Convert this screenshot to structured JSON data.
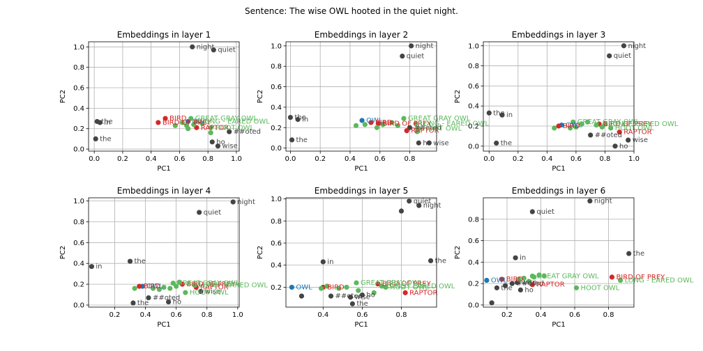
{
  "figure": {
    "title": "Sentence: The wise OWL hooted in the quiet night."
  },
  "colors": {
    "context": "#444444",
    "owl": "#1f77b4",
    "bird": "#d62728",
    "family": "#5cb85c"
  },
  "chart_data": [
    {
      "type": "scatter",
      "title": "Embeddings in layer 1",
      "xlabel": "PC1",
      "ylabel": "PC2",
      "xlim": [
        -0.04,
        1.02
      ],
      "ylim": [
        -0.02,
        1.05
      ],
      "xticks": [
        0.0,
        0.2,
        0.4,
        0.6,
        0.8,
        1.0
      ],
      "yticks": [
        0.0,
        0.2,
        0.4,
        0.6,
        0.8,
        1.0
      ],
      "grid": true,
      "points": [
        {
          "x": 0.69,
          "y": 1.0,
          "label": "night",
          "group": "context"
        },
        {
          "x": 0.84,
          "y": 0.97,
          "label": "quiet",
          "group": "context"
        },
        {
          "x": 0.02,
          "y": 0.27,
          "label": "the",
          "group": "context"
        },
        {
          "x": 0.04,
          "y": 0.26,
          "label": "in",
          "group": "context"
        },
        {
          "x": 0.01,
          "y": 0.1,
          "label": "the",
          "group": "context"
        },
        {
          "x": 0.83,
          "y": 0.07,
          "label": "ho",
          "group": "context"
        },
        {
          "x": 0.87,
          "y": 0.03,
          "label": "wise",
          "group": "context"
        },
        {
          "x": 0.95,
          "y": 0.17,
          "label": "##oted",
          "group": "context"
        },
        {
          "x": 0.66,
          "y": 0.27,
          "label": "OWL",
          "group": "owl"
        },
        {
          "x": 0.5,
          "y": 0.3,
          "label": "BIRD",
          "group": "bird"
        },
        {
          "x": 0.45,
          "y": 0.26,
          "label": "BIRD OF PREY",
          "group": "bird"
        },
        {
          "x": 0.72,
          "y": 0.21,
          "label": "RAPTOR",
          "group": "bird"
        },
        {
          "x": 0.68,
          "y": 0.3,
          "label": "GREAT GRAY OWL",
          "group": "family"
        },
        {
          "x": 0.72,
          "y": 0.27,
          "label": "LONG - EARED OWL",
          "group": "family"
        },
        {
          "x": 0.82,
          "y": 0.21,
          "label": "HOOT OWL",
          "group": "family"
        },
        {
          "x": 0.57,
          "y": 0.23,
          "label": "",
          "group": "family"
        },
        {
          "x": 0.62,
          "y": 0.26,
          "label": "",
          "group": "family"
        },
        {
          "x": 0.65,
          "y": 0.23,
          "label": "",
          "group": "family"
        },
        {
          "x": 0.66,
          "y": 0.2,
          "label": "",
          "group": "family"
        },
        {
          "x": 0.7,
          "y": 0.24,
          "label": "",
          "group": "family"
        },
        {
          "x": 0.76,
          "y": 0.25,
          "label": "",
          "group": "family"
        },
        {
          "x": 0.82,
          "y": 0.16,
          "label": "",
          "group": "family"
        }
      ]
    },
    {
      "type": "scatter",
      "title": "Embeddings in layer 2",
      "xlabel": "PC1",
      "ylabel": "PC2",
      "xlim": [
        -0.03,
        0.98
      ],
      "ylim": [
        -0.03,
        1.04
      ],
      "xticks": [
        0.0,
        0.2,
        0.4,
        0.6,
        0.8
      ],
      "yticks": [
        0.0,
        0.2,
        0.4,
        0.6,
        0.8,
        1.0
      ],
      "grid": true,
      "points": [
        {
          "x": 0.81,
          "y": 1.0,
          "label": "night",
          "group": "context"
        },
        {
          "x": 0.75,
          "y": 0.9,
          "label": "quiet",
          "group": "context"
        },
        {
          "x": 0.0,
          "y": 0.3,
          "label": "the",
          "group": "context"
        },
        {
          "x": 0.05,
          "y": 0.28,
          "label": "in",
          "group": "context"
        },
        {
          "x": 0.01,
          "y": 0.08,
          "label": "the",
          "group": "context"
        },
        {
          "x": 0.86,
          "y": 0.05,
          "label": "ho",
          "group": "context"
        },
        {
          "x": 0.93,
          "y": 0.05,
          "label": "wise",
          "group": "context"
        },
        {
          "x": 0.8,
          "y": 0.2,
          "label": "##oted",
          "group": "context"
        },
        {
          "x": 0.48,
          "y": 0.27,
          "label": "OWL",
          "group": "owl"
        },
        {
          "x": 0.54,
          "y": 0.25,
          "label": "BIRD",
          "group": "bird"
        },
        {
          "x": 0.59,
          "y": 0.24,
          "label": "BIRD OF PREY",
          "group": "bird"
        },
        {
          "x": 0.78,
          "y": 0.17,
          "label": "RAPTOR",
          "group": "bird"
        },
        {
          "x": 0.76,
          "y": 0.29,
          "label": "GREAT GRAY OWL",
          "group": "family"
        },
        {
          "x": 0.84,
          "y": 0.24,
          "label": "LONG - EARED OWL",
          "group": "family"
        },
        {
          "x": 0.86,
          "y": 0.19,
          "label": "HOOT OWL",
          "group": "family"
        },
        {
          "x": 0.44,
          "y": 0.22,
          "label": "",
          "group": "family"
        },
        {
          "x": 0.5,
          "y": 0.23,
          "label": "",
          "group": "family"
        },
        {
          "x": 0.58,
          "y": 0.2,
          "label": "",
          "group": "family"
        },
        {
          "x": 0.62,
          "y": 0.23,
          "label": "",
          "group": "family"
        },
        {
          "x": 0.68,
          "y": 0.25,
          "label": "",
          "group": "family"
        },
        {
          "x": 0.72,
          "y": 0.22,
          "label": "",
          "group": "family"
        },
        {
          "x": 0.85,
          "y": 0.16,
          "label": "",
          "group": "family"
        }
      ]
    },
    {
      "type": "scatter",
      "title": "Embeddings in layer 3",
      "xlabel": "PC1",
      "ylabel": "PC2",
      "xlim": [
        -0.04,
        1.0
      ],
      "ylim": [
        -0.05,
        1.04
      ],
      "xticks": [
        0.0,
        0.2,
        0.4,
        0.6,
        0.8,
        1.0
      ],
      "yticks": [
        0.0,
        0.2,
        0.4,
        0.6,
        0.8,
        1.0
      ],
      "grid": true,
      "points": [
        {
          "x": 0.93,
          "y": 1.0,
          "label": "night",
          "group": "context"
        },
        {
          "x": 0.83,
          "y": 0.9,
          "label": "quiet",
          "group": "context"
        },
        {
          "x": 0.0,
          "y": 0.33,
          "label": "the",
          "group": "context"
        },
        {
          "x": 0.09,
          "y": 0.31,
          "label": "in",
          "group": "context"
        },
        {
          "x": 0.05,
          "y": 0.03,
          "label": "the",
          "group": "context"
        },
        {
          "x": 0.87,
          "y": 0.0,
          "label": "ho",
          "group": "context"
        },
        {
          "x": 0.96,
          "y": 0.06,
          "label": "wise",
          "group": "context"
        },
        {
          "x": 0.7,
          "y": 0.11,
          "label": "##oted",
          "group": "context"
        },
        {
          "x": 0.5,
          "y": 0.21,
          "label": "OWL",
          "group": "owl"
        },
        {
          "x": 0.48,
          "y": 0.2,
          "label": "BIRD",
          "group": "bird"
        },
        {
          "x": 0.76,
          "y": 0.22,
          "label": "BIRD OF PREY",
          "group": "bird"
        },
        {
          "x": 0.9,
          "y": 0.14,
          "label": "RAPTOR",
          "group": "bird"
        },
        {
          "x": 0.58,
          "y": 0.24,
          "label": "GREAT GRAY OWL",
          "group": "family"
        },
        {
          "x": 0.8,
          "y": 0.22,
          "label": "LONG - EARED OWL",
          "group": "family"
        },
        {
          "x": 0.84,
          "y": 0.18,
          "label": "HOOT OWL",
          "group": "family"
        },
        {
          "x": 0.45,
          "y": 0.18,
          "label": "",
          "group": "family"
        },
        {
          "x": 0.56,
          "y": 0.18,
          "label": "",
          "group": "family"
        },
        {
          "x": 0.6,
          "y": 0.19,
          "label": "",
          "group": "family"
        },
        {
          "x": 0.64,
          "y": 0.22,
          "label": "",
          "group": "family"
        },
        {
          "x": 0.68,
          "y": 0.24,
          "label": "",
          "group": "family"
        },
        {
          "x": 0.74,
          "y": 0.21,
          "label": "",
          "group": "family"
        },
        {
          "x": 0.78,
          "y": 0.19,
          "label": "",
          "group": "family"
        }
      ]
    },
    {
      "type": "scatter",
      "title": "Embeddings in layer 4",
      "xlabel": "PC1",
      "ylabel": "PC2",
      "xlim": [
        0.03,
        1.01
      ],
      "ylim": [
        -0.02,
        1.03
      ],
      "xticks": [
        0.2,
        0.4,
        0.6,
        0.8,
        1.0
      ],
      "yticks": [
        0.0,
        0.2,
        0.4,
        0.6,
        0.8,
        1.0
      ],
      "grid": true,
      "points": [
        {
          "x": 0.97,
          "y": 0.99,
          "label": "night",
          "group": "context"
        },
        {
          "x": 0.75,
          "y": 0.89,
          "label": "quiet",
          "group": "context"
        },
        {
          "x": 0.05,
          "y": 0.37,
          "label": "in",
          "group": "context"
        },
        {
          "x": 0.3,
          "y": 0.42,
          "label": "the",
          "group": "context"
        },
        {
          "x": 0.32,
          "y": 0.02,
          "label": "the",
          "group": "context"
        },
        {
          "x": 0.55,
          "y": 0.03,
          "label": "ho",
          "group": "context"
        },
        {
          "x": 0.76,
          "y": 0.13,
          "label": "wise",
          "group": "context"
        },
        {
          "x": 0.42,
          "y": 0.07,
          "label": "##oted",
          "group": "context"
        },
        {
          "x": 0.38,
          "y": 0.18,
          "label": "OWL",
          "group": "owl"
        },
        {
          "x": 0.36,
          "y": 0.18,
          "label": "BIRD",
          "group": "bird"
        },
        {
          "x": 0.64,
          "y": 0.2,
          "label": "BIRD OF PREY",
          "group": "bird"
        },
        {
          "x": 0.73,
          "y": 0.17,
          "label": "RAPTOR",
          "group": "bird"
        },
        {
          "x": 0.58,
          "y": 0.21,
          "label": "GREAT GRAY OWL",
          "group": "family"
        },
        {
          "x": 0.72,
          "y": 0.19,
          "label": "LONG - EARED OWL",
          "group": "family"
        },
        {
          "x": 0.66,
          "y": 0.12,
          "label": "HOOT OWL",
          "group": "family"
        },
        {
          "x": 0.33,
          "y": 0.16,
          "label": "",
          "group": "family"
        },
        {
          "x": 0.45,
          "y": 0.16,
          "label": "",
          "group": "family"
        },
        {
          "x": 0.49,
          "y": 0.15,
          "label": "",
          "group": "family"
        },
        {
          "x": 0.52,
          "y": 0.17,
          "label": "",
          "group": "family"
        },
        {
          "x": 0.56,
          "y": 0.16,
          "label": "",
          "group": "family"
        },
        {
          "x": 0.6,
          "y": 0.18,
          "label": "",
          "group": "family"
        },
        {
          "x": 0.62,
          "y": 0.22,
          "label": "",
          "group": "family"
        }
      ]
    },
    {
      "type": "scatter",
      "title": "Embeddings in layer 5",
      "xlabel": "PC1",
      "ylabel": "PC2",
      "xlim": [
        0.21,
        0.98
      ],
      "ylim": [
        0.02,
        1.01
      ],
      "xticks": [
        0.4,
        0.6,
        0.8
      ],
      "yticks": [
        0.2,
        0.4,
        0.6,
        0.8,
        1.0
      ],
      "grid": true,
      "points": [
        {
          "x": 0.84,
          "y": 0.98,
          "label": "quiet",
          "group": "context"
        },
        {
          "x": 0.89,
          "y": 0.94,
          "label": "night",
          "group": "context"
        },
        {
          "x": 0.8,
          "y": 0.89,
          "label": "",
          "group": "context"
        },
        {
          "x": 0.4,
          "y": 0.43,
          "label": "in",
          "group": "context"
        },
        {
          "x": 0.95,
          "y": 0.44,
          "label": "the",
          "group": "context"
        },
        {
          "x": 0.29,
          "y": 0.12,
          "label": "",
          "group": "context"
        },
        {
          "x": 0.44,
          "y": 0.12,
          "label": "##oted",
          "group": "context"
        },
        {
          "x": 0.54,
          "y": 0.11,
          "label": "wise",
          "group": "context"
        },
        {
          "x": 0.55,
          "y": 0.05,
          "label": "the",
          "group": "context"
        },
        {
          "x": 0.6,
          "y": 0.13,
          "label": "ho",
          "group": "context"
        },
        {
          "x": 0.24,
          "y": 0.2,
          "label": "OWL",
          "group": "owl"
        },
        {
          "x": 0.4,
          "y": 0.2,
          "label": "BIRD",
          "group": "bird"
        },
        {
          "x": 0.68,
          "y": 0.23,
          "label": "BIRD OF PREY",
          "group": "bird"
        },
        {
          "x": 0.82,
          "y": 0.15,
          "label": "RAPTOR",
          "group": "bird"
        },
        {
          "x": 0.57,
          "y": 0.24,
          "label": "GREAT GRAY OWL",
          "group": "family"
        },
        {
          "x": 0.7,
          "y": 0.21,
          "label": "LONG - EARED OWL",
          "group": "family"
        },
        {
          "x": 0.72,
          "y": 0.2,
          "label": "HOOT OWL",
          "group": "family"
        },
        {
          "x": 0.39,
          "y": 0.19,
          "label": "",
          "group": "family"
        },
        {
          "x": 0.42,
          "y": 0.21,
          "label": "",
          "group": "family"
        },
        {
          "x": 0.48,
          "y": 0.19,
          "label": "",
          "group": "family"
        },
        {
          "x": 0.52,
          "y": 0.2,
          "label": "",
          "group": "family"
        },
        {
          "x": 0.58,
          "y": 0.17,
          "label": "",
          "group": "family"
        },
        {
          "x": 0.66,
          "y": 0.15,
          "label": "",
          "group": "family"
        }
      ]
    },
    {
      "type": "scatter",
      "title": "Embeddings in layer 6",
      "xlabel": "PC1",
      "ylabel": "PC2",
      "xlim": [
        0.06,
        0.95
      ],
      "ylim": [
        -0.02,
        1.0
      ],
      "xticks": [
        0.2,
        0.4,
        0.6,
        0.8
      ],
      "yticks": [
        0.0,
        0.2,
        0.4,
        0.6,
        0.8
      ],
      "grid": true,
      "points": [
        {
          "x": 0.69,
          "y": 0.97,
          "label": "night",
          "group": "context"
        },
        {
          "x": 0.35,
          "y": 0.87,
          "label": "quiet",
          "group": "context"
        },
        {
          "x": 0.92,
          "y": 0.48,
          "label": "the",
          "group": "context"
        },
        {
          "x": 0.25,
          "y": 0.44,
          "label": "in",
          "group": "context"
        },
        {
          "x": 0.11,
          "y": 0.02,
          "label": "",
          "group": "context"
        },
        {
          "x": 0.14,
          "y": 0.16,
          "label": "the",
          "group": "context"
        },
        {
          "x": 0.19,
          "y": 0.18,
          "label": "",
          "group": "context"
        },
        {
          "x": 0.23,
          "y": 0.2,
          "label": "##oted",
          "group": "context"
        },
        {
          "x": 0.26,
          "y": 0.21,
          "label": "wise",
          "group": "context"
        },
        {
          "x": 0.28,
          "y": 0.14,
          "label": "ho",
          "group": "context"
        },
        {
          "x": 0.08,
          "y": 0.23,
          "label": "OWL",
          "group": "owl"
        },
        {
          "x": 0.17,
          "y": 0.24,
          "label": "BIRD",
          "group": "bird"
        },
        {
          "x": 0.82,
          "y": 0.26,
          "label": "BIRD OF PREY",
          "group": "bird"
        },
        {
          "x": 0.35,
          "y": 0.19,
          "label": "RAPTOR",
          "group": "bird"
        },
        {
          "x": 0.35,
          "y": 0.27,
          "label": "GREAT GRAY OWL",
          "group": "family"
        },
        {
          "x": 0.87,
          "y": 0.23,
          "label": "LONG - EARED OWL",
          "group": "family"
        },
        {
          "x": 0.61,
          "y": 0.16,
          "label": "HOOT OWL",
          "group": "family"
        },
        {
          "x": 0.27,
          "y": 0.24,
          "label": "",
          "group": "family"
        },
        {
          "x": 0.3,
          "y": 0.25,
          "label": "",
          "group": "family"
        },
        {
          "x": 0.33,
          "y": 0.22,
          "label": "",
          "group": "family"
        },
        {
          "x": 0.36,
          "y": 0.26,
          "label": "",
          "group": "family"
        },
        {
          "x": 0.39,
          "y": 0.28,
          "label": "",
          "group": "family"
        },
        {
          "x": 0.42,
          "y": 0.27,
          "label": "",
          "group": "family"
        }
      ]
    }
  ]
}
